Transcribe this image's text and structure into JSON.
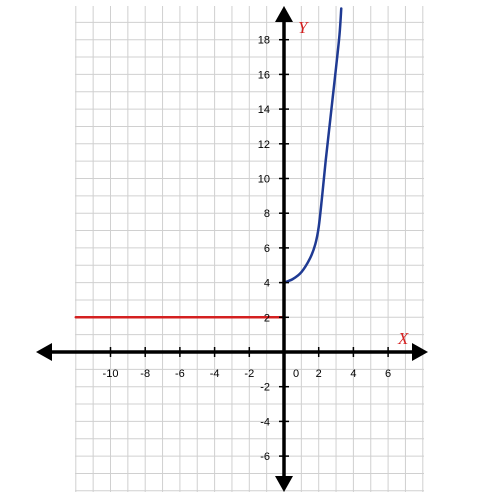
{
  "chart_data": {
    "type": "line",
    "title": "",
    "xlabel": "X",
    "ylabel": "Y",
    "xlim": [
      -12,
      8
    ],
    "ylim": [
      -8,
      20
    ],
    "grid": true,
    "x_ticks": [
      "-10",
      "-8",
      "-6",
      "-4",
      "-2",
      "0",
      "2",
      "4",
      "6"
    ],
    "y_ticks": [
      "18",
      "16",
      "14",
      "12",
      "10",
      "8",
      "6",
      "4",
      "2",
      "-2",
      "-4",
      "-6"
    ],
    "series": [
      {
        "color": "#d42020",
        "x": [
          -12,
          0
        ],
        "y": [
          2,
          2
        ]
      },
      {
        "color": "#1f3a93",
        "x": [
          0,
          0.5,
          1,
          1.5,
          1.8,
          2,
          2.2,
          2.4,
          2.6,
          2.8,
          3,
          3.2,
          3.3
        ],
        "y": [
          4,
          4.2,
          4.6,
          5.4,
          6.2,
          7.2,
          9,
          11,
          12.8,
          14.6,
          16.4,
          18.3,
          19.8
        ]
      }
    ]
  },
  "colors": {
    "axis": "#000000",
    "grid": "#d0d0d0",
    "axis_name": "#d42020"
  }
}
